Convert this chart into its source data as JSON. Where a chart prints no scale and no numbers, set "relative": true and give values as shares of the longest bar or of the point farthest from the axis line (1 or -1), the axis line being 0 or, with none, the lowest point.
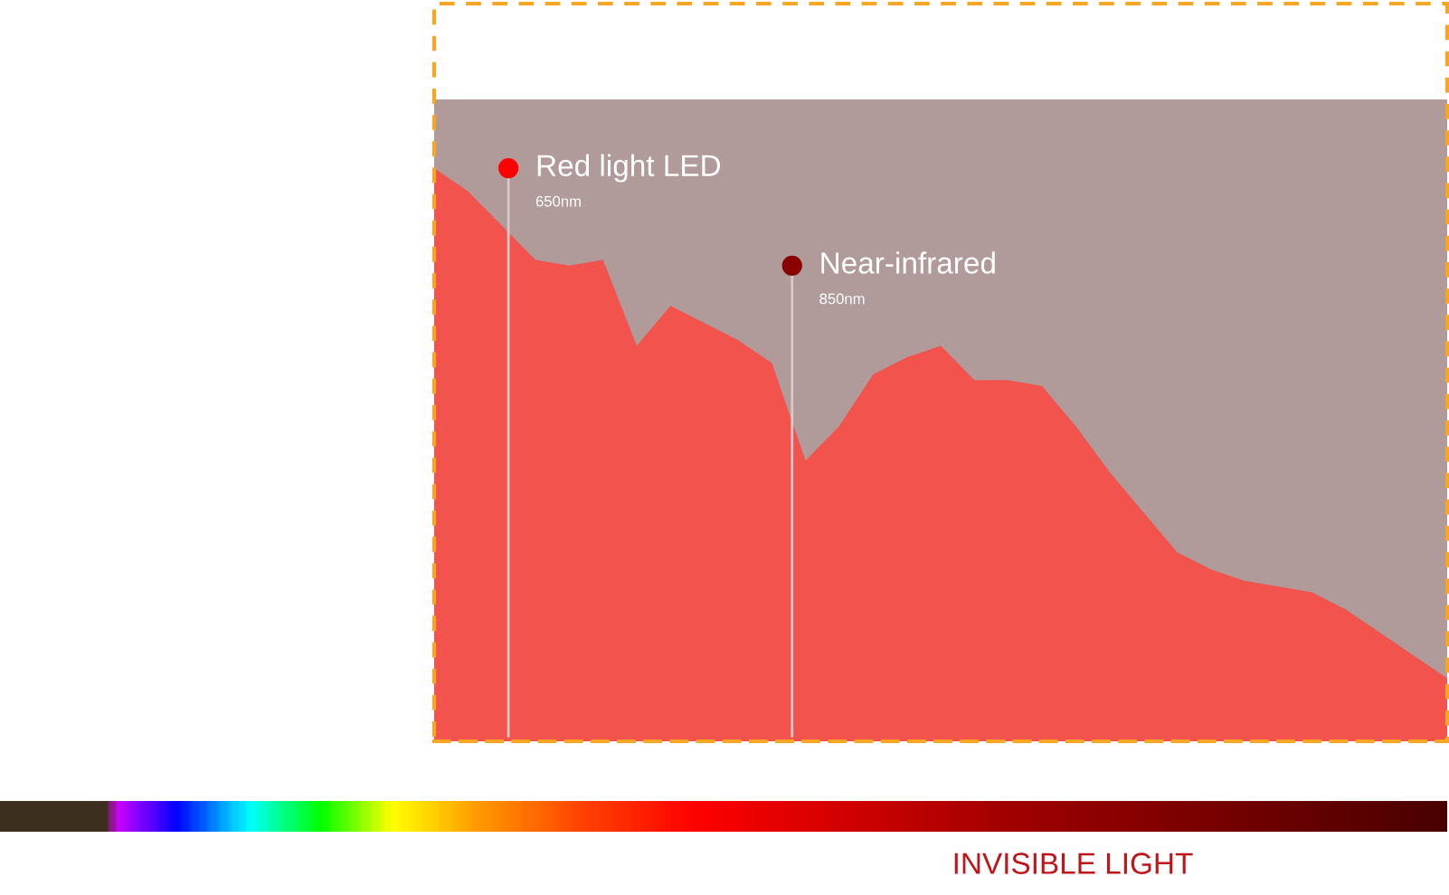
{
  "chart_data": {
    "type": "area",
    "relative": true,
    "color": "#f2534c",
    "categories": [
      null,
      null,
      null,
      null,
      null,
      null,
      null,
      null,
      null,
      null,
      null,
      null,
      null,
      null,
      null,
      null,
      null,
      null,
      null,
      null,
      null,
      null,
      null,
      null,
      null,
      null,
      null,
      null,
      null,
      null,
      null
    ],
    "values": [
      1,
      0.96,
      0.9,
      0.84,
      0.83,
      0.84,
      0.69,
      0.76,
      0.73,
      0.7,
      0.66,
      0.49,
      0.55,
      0.64,
      0.67,
      0.69,
      0.63,
      0.63,
      0.62,
      0.55,
      0.47,
      0.4,
      0.33,
      0.3,
      0.28,
      0.27,
      0.26,
      0.23,
      0.19,
      0.15,
      0.11
    ],
    "grid": false,
    "legend": false,
    "annotations": [
      "Red light LED",
      "650nm",
      "Near-infrared",
      "850nm",
      "INVISIBLE LIGHT"
    ]
  }
}
